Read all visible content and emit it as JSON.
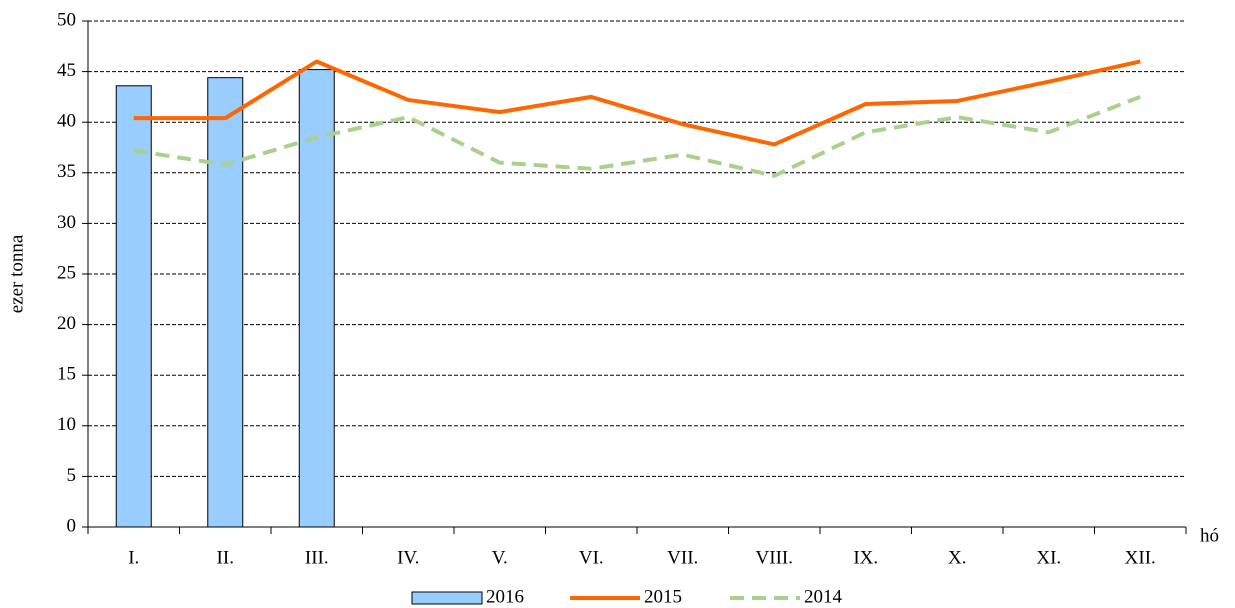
{
  "chart_data": {
    "type": "combo",
    "y_label": "ezer tonna",
    "x_label": "hó",
    "categories": [
      "I.",
      "II.",
      "III.",
      "IV.",
      "V.",
      "VI.",
      "VII.",
      "VIII.",
      "IX.",
      "X.",
      "XI.",
      "XII."
    ],
    "series": [
      {
        "name": "2016",
        "type": "bar",
        "color": "#99ccff",
        "values": [
          43.6,
          44.4,
          45.2,
          null,
          null,
          null,
          null,
          null,
          null,
          null,
          null,
          null
        ]
      },
      {
        "name": "2015",
        "type": "line",
        "color": "#ff6600",
        "values": [
          40.4,
          40.4,
          46.0,
          42.2,
          41.0,
          42.5,
          39.8,
          37.8,
          41.8,
          42.1,
          44.0,
          46.0
        ]
      },
      {
        "name": "2014",
        "type": "line",
        "dash": true,
        "color": "#a9d18e",
        "values": [
          37.2,
          35.8,
          38.5,
          40.5,
          36.0,
          35.4,
          36.8,
          34.7,
          39.0,
          40.5,
          39.0,
          42.5
        ]
      }
    ],
    "ylim": [
      0,
      50
    ],
    "yticks": [
      0,
      5,
      10,
      15,
      20,
      25,
      30,
      35,
      40,
      45,
      50
    ],
    "grid": true,
    "legend": "bottom"
  }
}
